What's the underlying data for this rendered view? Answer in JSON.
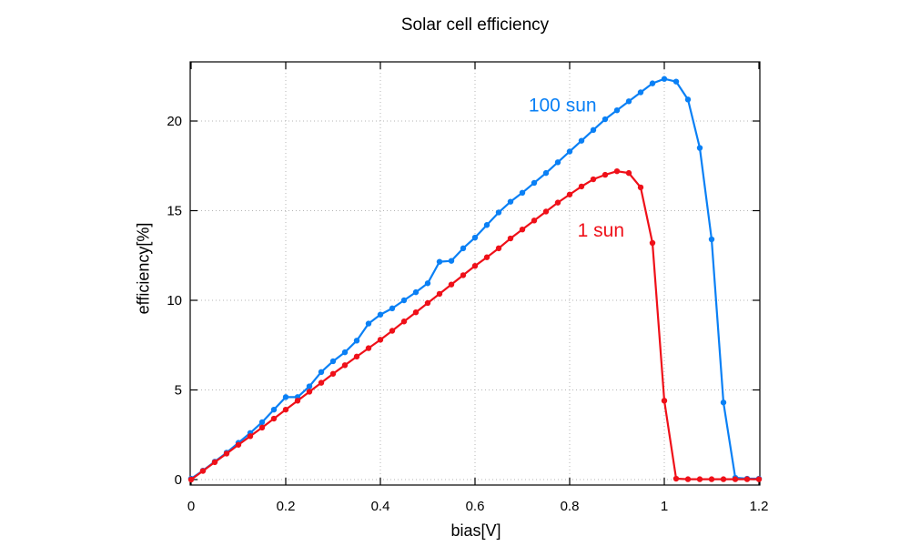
{
  "page": {
    "background": "#ffffff"
  },
  "chart_data": {
    "type": "line",
    "title": "Solar cell efficiency",
    "xlabel": "bias[V]",
    "ylabel": "efficiency[%]",
    "xlim": [
      0,
      1.2
    ],
    "ylim": [
      -0.3,
      23.3
    ],
    "grid": true,
    "grid_style": "dotted",
    "legend_position": "inline-annotations",
    "xticks": [
      {
        "v": 0,
        "label": "0"
      },
      {
        "v": 0.2,
        "label": "0.2"
      },
      {
        "v": 0.4,
        "label": "0.4"
      },
      {
        "v": 0.6,
        "label": "0.6"
      },
      {
        "v": 0.8,
        "label": "0.8"
      },
      {
        "v": 1.0,
        "label": "1"
      },
      {
        "v": 1.2,
        "label": "1.2"
      }
    ],
    "yticks": [
      {
        "v": 0,
        "label": "0"
      },
      {
        "v": 5,
        "label": "5"
      },
      {
        "v": 10,
        "label": "10"
      },
      {
        "v": 15,
        "label": "15"
      },
      {
        "v": 20,
        "label": "20"
      }
    ],
    "x_gridlines": [
      0.2,
      0.4,
      0.6,
      0.8,
      1.0
    ],
    "y_gridlines": [
      0,
      5,
      10,
      15,
      20
    ],
    "x": [
      0,
      0.025,
      0.05,
      0.075,
      0.1,
      0.125,
      0.15,
      0.175,
      0.2,
      0.225,
      0.25,
      0.275,
      0.3,
      0.325,
      0.35,
      0.375,
      0.4,
      0.425,
      0.45,
      0.475,
      0.5,
      0.525,
      0.55,
      0.575,
      0.6,
      0.625,
      0.65,
      0.675,
      0.7,
      0.725,
      0.75,
      0.775,
      0.8,
      0.825,
      0.85,
      0.875,
      0.9,
      0.925,
      0.95,
      0.975,
      1.0,
      1.025,
      1.05,
      1.075,
      1.1,
      1.125,
      1.15,
      1.175,
      1.2
    ],
    "series": [
      {
        "name": "100 sun",
        "color": "#0a80f5",
        "marker": "circle",
        "label_anchor": {
          "x": 0.785,
          "y": 20.9
        },
        "values": [
          0.05,
          0.5,
          1.0,
          1.5,
          2.05,
          2.6,
          3.2,
          3.9,
          4.6,
          4.6,
          5.2,
          6.0,
          6.6,
          7.1,
          7.75,
          8.7,
          9.2,
          9.55,
          10.0,
          10.45,
          10.95,
          12.15,
          12.2,
          12.9,
          13.5,
          14.2,
          14.9,
          15.5,
          16.0,
          16.55,
          17.1,
          17.7,
          18.3,
          18.9,
          19.5,
          20.1,
          20.6,
          21.1,
          21.6,
          22.1,
          22.35,
          22.2,
          21.2,
          18.5,
          13.4,
          4.3,
          0.1,
          0.05,
          0.05
        ]
      },
      {
        "name": "1 sun",
        "color": "#ef1019",
        "marker": "circle",
        "label_anchor": {
          "x": 0.866,
          "y": 13.9
        },
        "values": [
          0.0,
          0.48,
          0.97,
          1.45,
          1.94,
          2.42,
          2.9,
          3.4,
          3.9,
          4.4,
          4.9,
          5.4,
          5.9,
          6.38,
          6.86,
          7.33,
          7.8,
          8.3,
          8.82,
          9.33,
          9.85,
          10.36,
          10.88,
          11.4,
          11.92,
          12.4,
          12.9,
          13.45,
          13.95,
          14.45,
          14.95,
          15.45,
          15.9,
          16.35,
          16.75,
          17.0,
          17.2,
          17.1,
          16.3,
          13.2,
          4.4,
          0.05,
          0.02,
          0.02,
          0.02,
          0.02,
          0.02,
          0.02,
          0.02
        ]
      }
    ],
    "style": {
      "grid_color": "#b5b5b5",
      "axis_color": "#000000",
      "line_width": 2.2,
      "marker_radius": 3.2
    }
  }
}
